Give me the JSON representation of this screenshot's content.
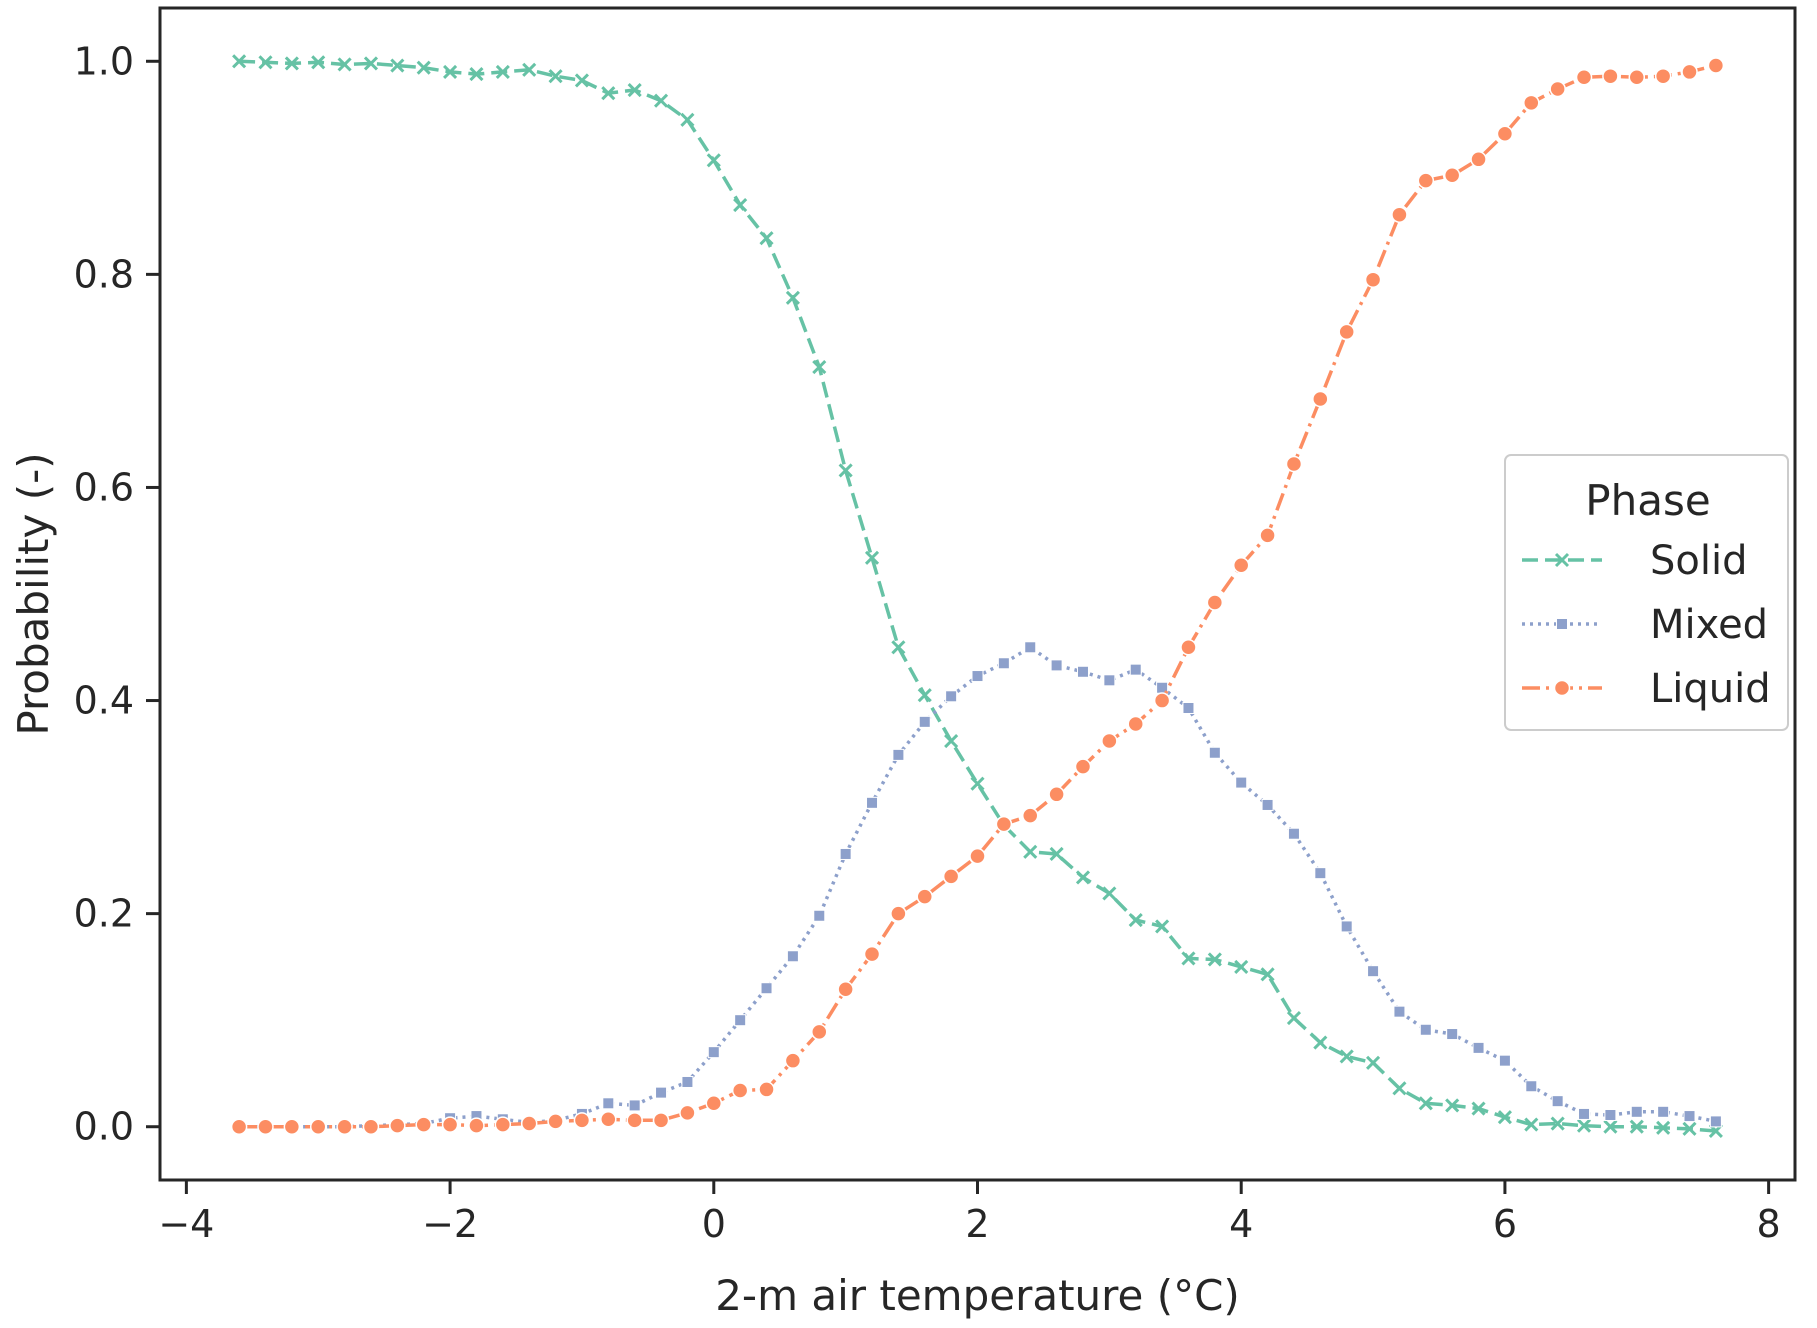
{
  "chart_data": {
    "type": "line",
    "xlabel": "2-m air temperature (°C)",
    "ylabel": "Probability (-)",
    "xlim": [
      -4.2,
      8.2
    ],
    "ylim": [
      -0.05,
      1.05
    ],
    "x_ticks": [
      -4,
      -2,
      0,
      2,
      4,
      6,
      8
    ],
    "x_tick_labels": [
      "−4",
      "−2",
      "0",
      "2",
      "4",
      "6",
      "8"
    ],
    "y_ticks": [
      0.0,
      0.2,
      0.4,
      0.6,
      0.8,
      1.0
    ],
    "y_tick_labels": [
      "0.0",
      "0.2",
      "0.4",
      "0.6",
      "0.8",
      "1.0"
    ],
    "grid": false,
    "legend": {
      "title": "Phase",
      "position": "center-right"
    },
    "x": [
      -3.6,
      -3.4,
      -3.2,
      -3.0,
      -2.8,
      -2.6,
      -2.4,
      -2.2,
      -2.0,
      -1.8,
      -1.6,
      -1.4,
      -1.2,
      -1.0,
      -0.8,
      -0.6,
      -0.4,
      -0.2,
      0.0,
      0.2,
      0.4,
      0.6,
      0.8,
      1.0,
      1.2,
      1.4,
      1.6,
      1.8,
      2.0,
      2.2,
      2.4,
      2.6,
      2.8,
      3.0,
      3.2,
      3.4,
      3.6,
      3.8,
      4.0,
      4.2,
      4.4,
      4.6,
      4.8,
      5.0,
      5.2,
      5.4,
      5.6,
      5.8,
      6.0,
      6.2,
      6.4,
      6.6,
      6.8,
      7.0,
      7.2,
      7.4,
      7.6
    ],
    "series": [
      {
        "name": "Solid",
        "color": "#66c2a5",
        "marker": "x",
        "dash": "dashed",
        "values": [
          1.0,
          0.999,
          0.998,
          0.999,
          0.997,
          0.998,
          0.996,
          0.994,
          0.99,
          0.988,
          0.99,
          0.992,
          0.986,
          0.982,
          0.97,
          0.973,
          0.963,
          0.945,
          0.907,
          0.865,
          0.834,
          0.778,
          0.713,
          0.616,
          0.534,
          0.45,
          0.405,
          0.362,
          0.322,
          0.283,
          0.258,
          0.256,
          0.234,
          0.219,
          0.194,
          0.188,
          0.158,
          0.157,
          0.15,
          0.143,
          0.102,
          0.079,
          0.066,
          0.06,
          0.036,
          0.022,
          0.02,
          0.017,
          0.009,
          0.002,
          0.003,
          0.001,
          0.0,
          0.0,
          -0.001,
          -0.002,
          -0.004
        ]
      },
      {
        "name": "Mixed",
        "color": "#8da0cb",
        "marker": "square",
        "dash": "dotted",
        "values": [
          0.0,
          0.0,
          0.0,
          0.0,
          0.0,
          0.001,
          0.002,
          0.003,
          0.008,
          0.01,
          0.007,
          0.004,
          0.006,
          0.012,
          0.022,
          0.02,
          0.032,
          0.042,
          0.07,
          0.1,
          0.13,
          0.16,
          0.198,
          0.256,
          0.304,
          0.349,
          0.38,
          0.404,
          0.423,
          0.435,
          0.45,
          0.433,
          0.427,
          0.419,
          0.429,
          0.412,
          0.393,
          0.351,
          0.323,
          0.302,
          0.275,
          0.238,
          0.188,
          0.146,
          0.108,
          0.091,
          0.087,
          0.074,
          0.062,
          0.038,
          0.024,
          0.012,
          0.011,
          0.014,
          0.014,
          0.01,
          0.005
        ]
      },
      {
        "name": "Liquid",
        "color": "#fc8d62",
        "marker": "circle",
        "dash": "dashdot",
        "values": [
          0.0,
          0.0,
          0.0,
          0.0,
          0.0,
          0.0,
          0.001,
          0.002,
          0.002,
          0.001,
          0.002,
          0.003,
          0.005,
          0.006,
          0.007,
          0.006,
          0.006,
          0.013,
          0.022,
          0.034,
          0.035,
          0.062,
          0.089,
          0.129,
          0.162,
          0.2,
          0.216,
          0.235,
          0.254,
          0.284,
          0.292,
          0.312,
          0.338,
          0.362,
          0.378,
          0.4,
          0.45,
          0.492,
          0.527,
          0.555,
          0.622,
          0.683,
          0.746,
          0.795,
          0.856,
          0.888,
          0.893,
          0.908,
          0.932,
          0.961,
          0.974,
          0.985,
          0.986,
          0.985,
          0.986,
          0.99,
          0.996
        ]
      }
    ]
  }
}
